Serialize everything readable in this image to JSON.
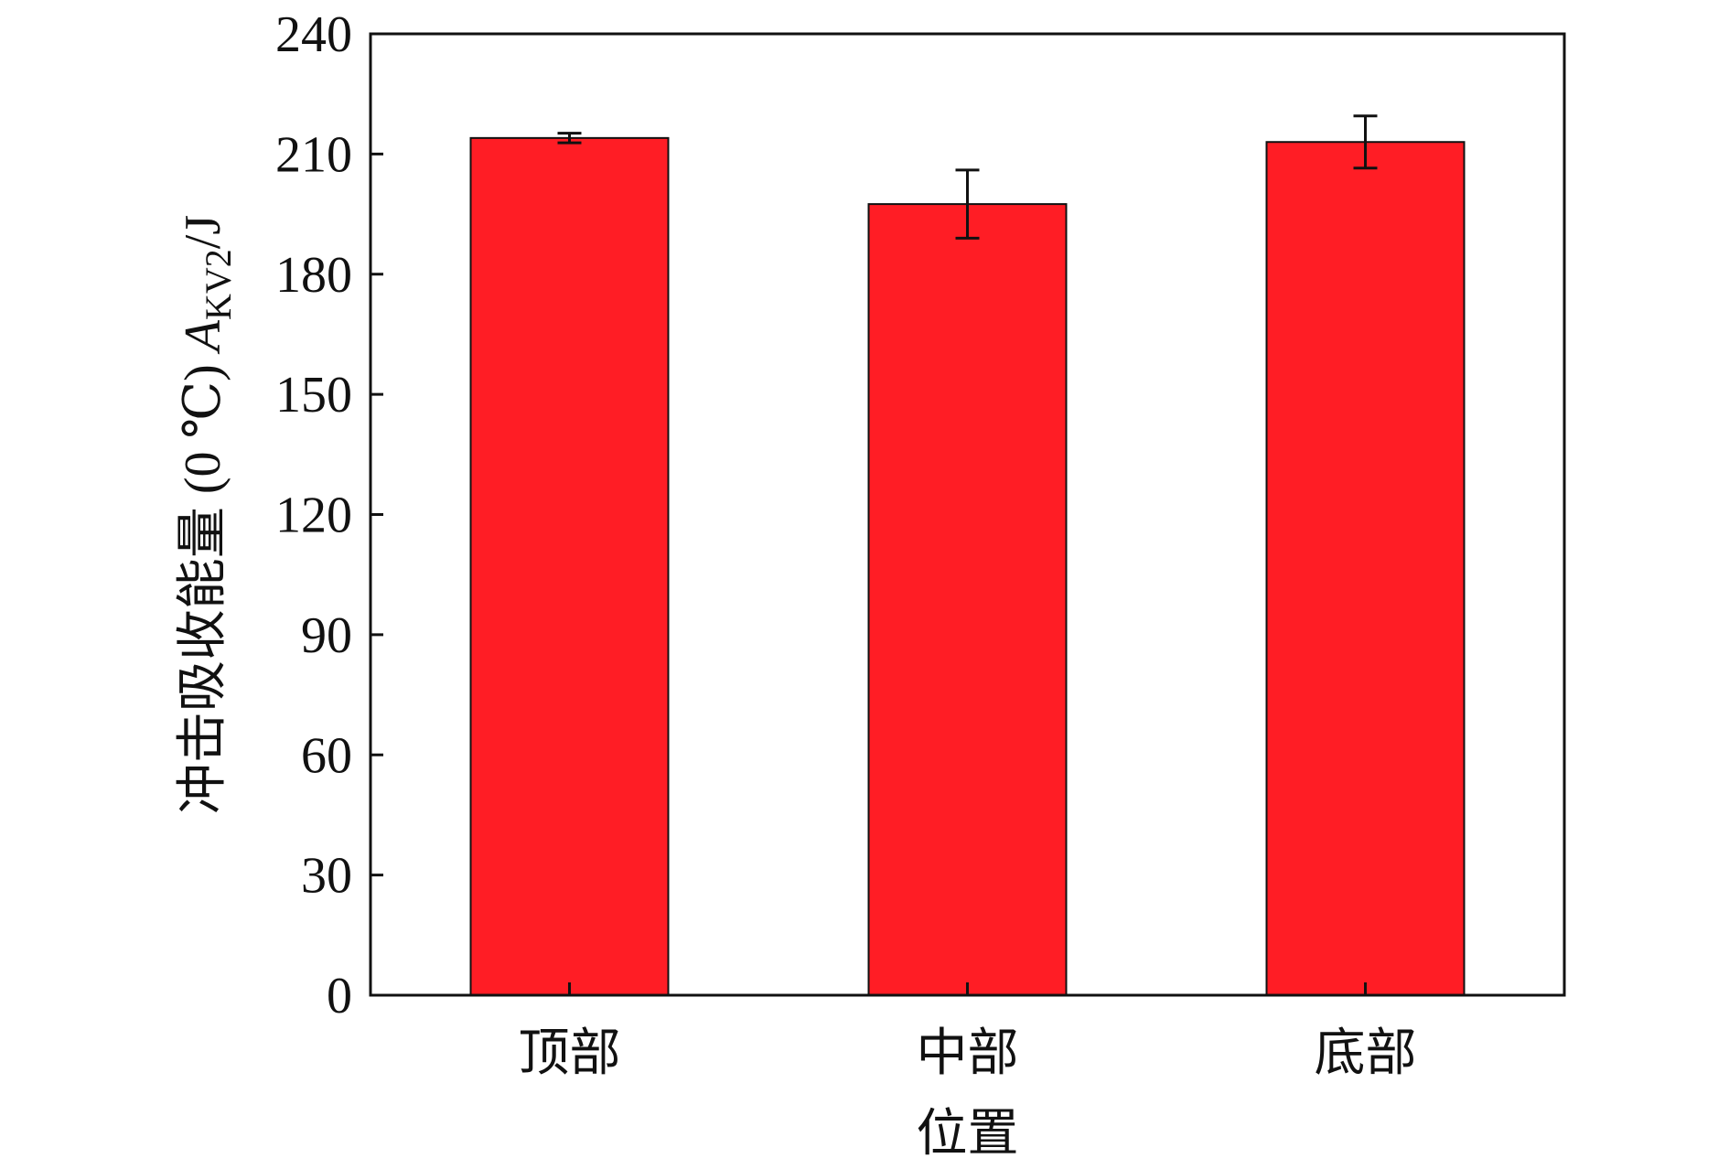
{
  "chart_data": {
    "type": "bar",
    "categories": [
      "顶部",
      "中部",
      "底部"
    ],
    "values": [
      214,
      197.5,
      213
    ],
    "error": [
      1.2,
      8.5,
      6.5
    ],
    "xlabel": "位置",
    "ylabel": {
      "prefix": "冲击吸收能量 (0 ℃) ",
      "symbol": "A",
      "subscript": "KV2",
      "suffix": "/J"
    },
    "ylim": [
      0,
      240
    ],
    "yticks": [
      0,
      30,
      60,
      90,
      120,
      150,
      180,
      210,
      240
    ],
    "grid": false,
    "legend": "none",
    "colors": {
      "bar": "#ff1d25",
      "outline": "#111111",
      "error": "#111111"
    }
  }
}
